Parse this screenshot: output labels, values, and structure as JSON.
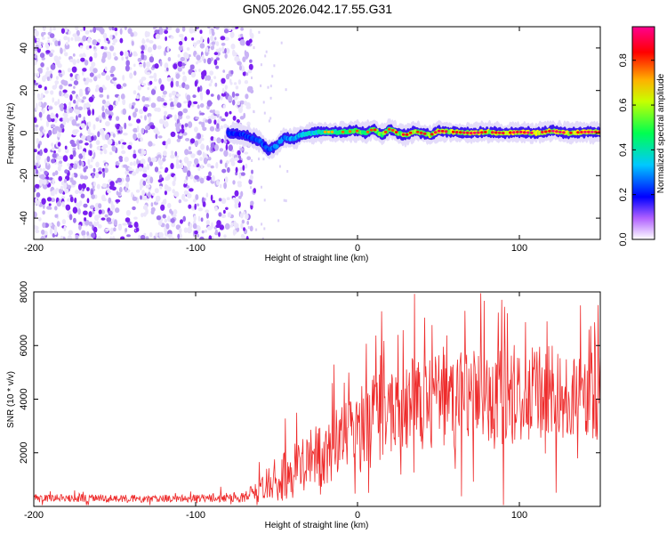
{
  "title": "GN05.2026.042.17.55.G31",
  "chart_data": [
    {
      "type": "heatmap",
      "xlabel": "Height of straight line (km)",
      "ylabel": "Frequency (Hz)",
      "xlim": [
        -200,
        150
      ],
      "ylim": [
        -50,
        50
      ],
      "x_ticks": [
        -200,
        -100,
        0,
        100
      ],
      "y_ticks": [
        -40,
        -20,
        0,
        20,
        40
      ],
      "colorbar": {
        "label": "Normalized spectral amplitude",
        "range": [
          0,
          0.95
        ],
        "ticks": [
          "0.0",
          "0.2",
          "0.4",
          "0.6",
          "0.8"
        ],
        "colormap": [
          "#e8e8f8",
          "#7f00ff",
          "#0000ff",
          "#00c8ff",
          "#00ff60",
          "#ffff00",
          "#ff8000",
          "#ff0000",
          "#ff0090"
        ]
      },
      "noise_region_x": [
        -200,
        -65
      ],
      "signal_track": {
        "x": [
          -80,
          -70,
          -60,
          -55,
          -50,
          -45,
          -40,
          -35,
          -30,
          -20,
          -10,
          0,
          5,
          10,
          15,
          20,
          25,
          30,
          35,
          40,
          45,
          50,
          60,
          70,
          80,
          90,
          100,
          110,
          120,
          130,
          140,
          150
        ],
        "freq": [
          0,
          -1,
          -4,
          -8,
          -6,
          -2,
          -3,
          -1,
          0,
          0.5,
          0.5,
          1,
          0,
          2,
          -1,
          2,
          0,
          -1,
          1,
          0,
          -1,
          1,
          0.5,
          0,
          0.5,
          0,
          0.5,
          0,
          1,
          0,
          0.5,
          0.5
        ]
      },
      "amplitude_profile": {
        "x": [
          -80,
          -60,
          -40,
          -20,
          0,
          50,
          150
        ],
        "value": [
          0.3,
          0.35,
          0.45,
          0.6,
          0.7,
          0.8,
          0.85
        ]
      }
    },
    {
      "type": "line",
      "xlabel": "Height of straight line (km)",
      "ylabel": "SNR (10 * v/v)",
      "xlim": [
        -200,
        150
      ],
      "ylim": [
        0,
        8000
      ],
      "x_ticks": [
        -200,
        -100,
        0,
        100
      ],
      "y_ticks": [
        2000,
        4000,
        6000,
        8000
      ],
      "color": "#ee2a2a",
      "snr_envelope": {
        "x": [
          -200,
          -100,
          -70,
          -60,
          -50,
          -40,
          -30,
          -20,
          -10,
          0,
          10,
          20,
          30,
          50,
          80,
          100,
          130,
          150
        ],
        "mean": [
          300,
          300,
          350,
          600,
          1000,
          1300,
          1700,
          2000,
          2500,
          2800,
          3200,
          3600,
          3800,
          4000,
          4000,
          4100,
          4300,
          4200
        ],
        "amplitude": [
          150,
          150,
          200,
          500,
          900,
          1000,
          1100,
          1300,
          1500,
          1600,
          1700,
          1700,
          1800,
          1800,
          1800,
          1800,
          1900,
          1900
        ]
      }
    }
  ]
}
